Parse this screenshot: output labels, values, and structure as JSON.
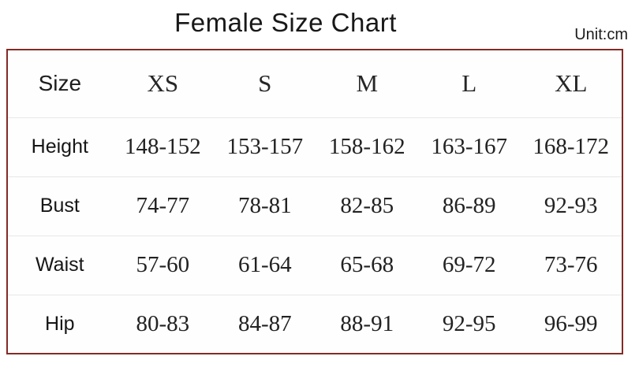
{
  "page": {
    "title": "Female Size Chart",
    "unit_label": "Unit:cm"
  },
  "chart_data": {
    "type": "table",
    "title": "Female Size Chart",
    "unit": "cm",
    "columns": [
      "Size",
      "XS",
      "S",
      "M",
      "L",
      "XL"
    ],
    "rows": [
      [
        "Height",
        "148-152",
        "153-157",
        "158-162",
        "163-167",
        "168-172"
      ],
      [
        "Bust",
        "74-77",
        "78-81",
        "82-85",
        "86-89",
        "92-93"
      ],
      [
        "Waist",
        "57-60",
        "61-64",
        "65-68",
        "69-72",
        "73-76"
      ],
      [
        "Hip",
        "80-83",
        "84-87",
        "88-91",
        "92-95",
        "96-99"
      ]
    ]
  },
  "colors": {
    "table_border": "#832b26",
    "row_divider": "#e7e7e7",
    "text": "#1d1d1d",
    "background": "#ffffff"
  }
}
